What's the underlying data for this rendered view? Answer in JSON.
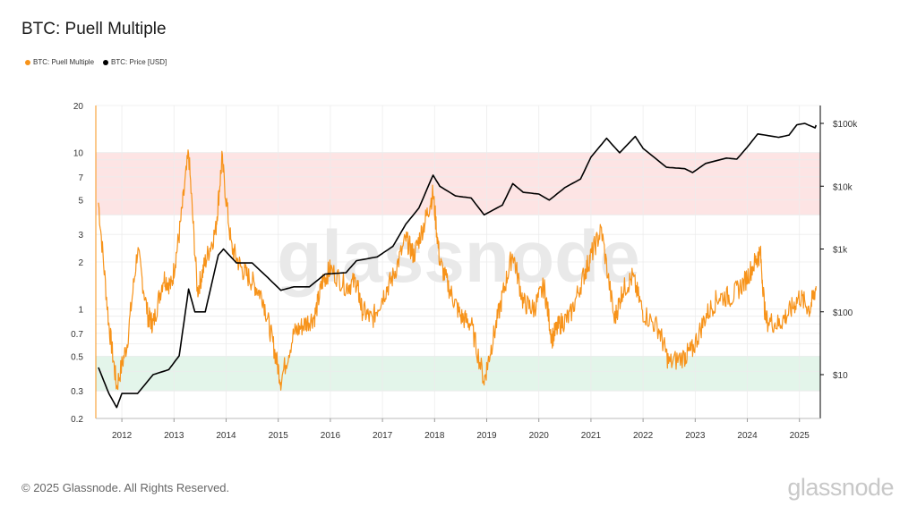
{
  "chart_data": {
    "type": "line",
    "title": "BTC: Puell Multiple",
    "legend": {
      "placement": "top-left"
    },
    "series": [
      {
        "name": "BTC: Puell Multiple",
        "color": "#f7931a",
        "axis": "left",
        "x": [
          2011.55,
          2011.75,
          2011.9,
          2012.1,
          2012.3,
          2012.5,
          2012.6,
          2012.8,
          2012.95,
          2013.1,
          2013.28,
          2013.45,
          2013.6,
          2013.8,
          2013.92,
          2014.1,
          2014.3,
          2014.5,
          2014.7,
          2014.9,
          2015.05,
          2015.3,
          2015.5,
          2015.7,
          2015.85,
          2016.0,
          2016.3,
          2016.5,
          2016.6,
          2016.8,
          2017.0,
          2017.2,
          2017.45,
          2017.6,
          2017.8,
          2017.97,
          2018.1,
          2018.3,
          2018.5,
          2018.7,
          2018.95,
          2019.1,
          2019.3,
          2019.5,
          2019.7,
          2019.9,
          2020.1,
          2020.25,
          2020.4,
          2020.6,
          2020.85,
          2021.0,
          2021.2,
          2021.45,
          2021.6,
          2021.8,
          2022.0,
          2022.3,
          2022.5,
          2022.8,
          2022.95,
          2023.2,
          2023.45,
          2023.7,
          2023.95,
          2024.15,
          2024.25,
          2024.35,
          2024.6,
          2024.8,
          2025.0,
          2025.2,
          2025.32
        ],
        "values": [
          4.8,
          0.8,
          0.32,
          0.6,
          2.4,
          0.9,
          0.8,
          1.6,
          1.4,
          3.0,
          10.0,
          1.3,
          2.0,
          3.2,
          9.0,
          2.5,
          1.8,
          1.5,
          1.2,
          0.6,
          0.35,
          0.7,
          0.8,
          0.9,
          1.5,
          1.8,
          1.4,
          1.5,
          1.0,
          0.85,
          1.2,
          1.6,
          2.8,
          2.2,
          3.5,
          5.5,
          2.0,
          1.3,
          0.9,
          0.8,
          0.35,
          0.6,
          1.2,
          2.3,
          1.1,
          1.0,
          1.4,
          0.65,
          0.8,
          0.9,
          1.6,
          2.2,
          3.2,
          0.85,
          1.3,
          1.6,
          0.95,
          0.75,
          0.45,
          0.5,
          0.55,
          0.9,
          1.2,
          1.2,
          1.5,
          2.0,
          2.3,
          0.85,
          0.8,
          0.95,
          1.2,
          1.0,
          1.4
        ]
      },
      {
        "name": "BTC: Price [USD]",
        "color": "#000000",
        "axis": "right",
        "x": [
          2011.55,
          2011.75,
          2011.9,
          2012.0,
          2012.3,
          2012.6,
          2012.9,
          2013.1,
          2013.28,
          2013.4,
          2013.6,
          2013.85,
          2013.95,
          2014.2,
          2014.5,
          2014.8,
          2015.05,
          2015.3,
          2015.6,
          2015.9,
          2016.3,
          2016.5,
          2016.9,
          2017.2,
          2017.45,
          2017.7,
          2017.97,
          2018.1,
          2018.4,
          2018.7,
          2018.95,
          2019.3,
          2019.5,
          2019.7,
          2020.0,
          2020.2,
          2020.5,
          2020.8,
          2021.0,
          2021.3,
          2021.55,
          2021.85,
          2022.0,
          2022.45,
          2022.8,
          2022.95,
          2023.2,
          2023.6,
          2023.8,
          2024.0,
          2024.2,
          2024.6,
          2024.8,
          2024.95,
          2025.1,
          2025.3,
          2025.32
        ],
        "values": [
          13,
          5,
          3,
          5,
          5,
          10,
          12,
          20,
          230,
          100,
          100,
          800,
          1000,
          600,
          600,
          350,
          220,
          250,
          250,
          400,
          420,
          650,
          750,
          1100,
          2500,
          4500,
          15000,
          10000,
          7000,
          6500,
          3500,
          5000,
          11000,
          8000,
          7500,
          6000,
          9500,
          13000,
          29000,
          58000,
          34000,
          62000,
          40000,
          20000,
          19000,
          16500,
          23000,
          28000,
          27000,
          42000,
          68000,
          60000,
          65000,
          95000,
          100000,
          85000,
          94000
        ]
      }
    ],
    "left_axis": {
      "scale": "log",
      "range": [
        0.2,
        20
      ],
      "ticks": [
        "0.2",
        "0.3",
        "0.5",
        "0.7",
        "1",
        "2",
        "3",
        "5",
        "7",
        "10",
        "20"
      ]
    },
    "right_axis": {
      "scale": "log",
      "ticks": [
        "$10",
        "$100",
        "$1k",
        "$10k",
        "$100k"
      ]
    },
    "x_axis": {
      "range": [
        2011.5,
        2025.4
      ],
      "ticks": [
        "2012",
        "2013",
        "2014",
        "2015",
        "2016",
        "2017",
        "2018",
        "2019",
        "2020",
        "2021",
        "2022",
        "2023",
        "2024",
        "2025"
      ]
    },
    "bands": [
      {
        "from": 4,
        "to": 10,
        "color": "#fde4e4"
      },
      {
        "from": 0.3,
        "to": 0.5,
        "color": "#e3f5ea"
      }
    ],
    "grid": "horizontal"
  },
  "watermark": "glassnode",
  "footer": {
    "copyright": "© 2025 Glassnode. All Rights Reserved.",
    "brand": "glassnode"
  }
}
